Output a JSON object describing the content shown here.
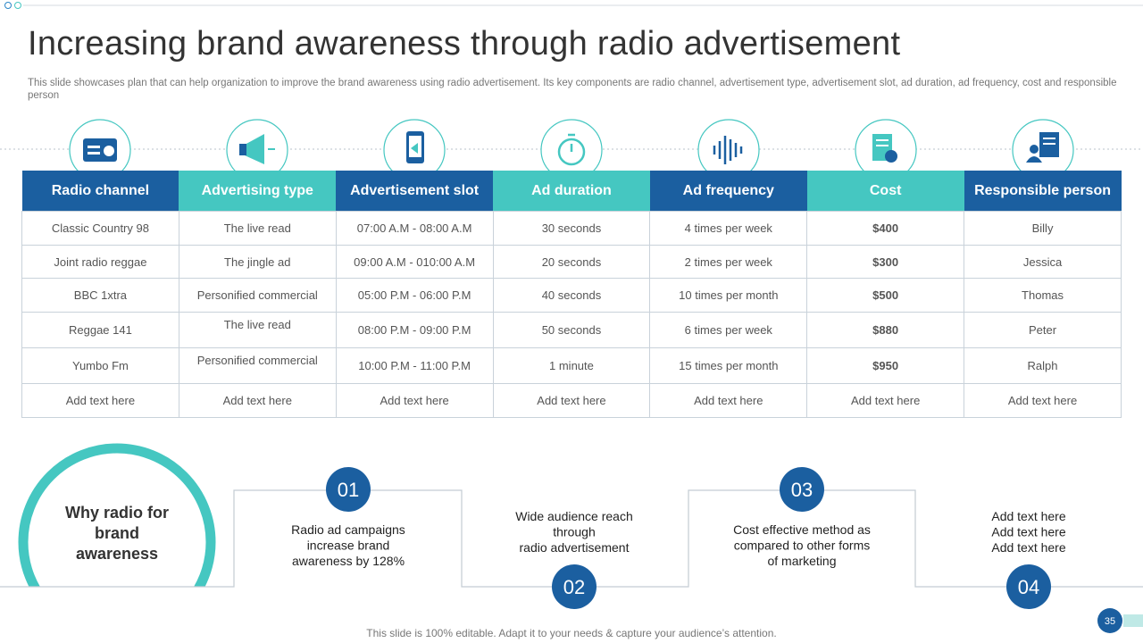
{
  "header": {
    "title": "Increasing brand awareness through radio advertisement",
    "subtitle": "This slide showcases plan that can help organization to improve the brand awareness using radio advertisement. Its key components are radio channel, advertisement type, advertisement slot, ad duration, ad frequency,  cost and responsible person"
  },
  "table": {
    "headers": [
      "Radio channel",
      "Advertising type",
      "Advertisement slot",
      "Ad duration",
      "Ad frequency",
      "Cost",
      "Responsible person"
    ],
    "rows": [
      [
        "Classic Country 98",
        "The live read",
        "07:00 A.M - 08:00 A.M",
        "30 seconds",
        "4 times per week",
        "$400",
        "Billy"
      ],
      [
        "Joint radio reggae",
        "The jingle ad",
        "09:00 A.M - 010:00 A.M",
        "20 seconds",
        "2 times per week",
        "$300",
        "Jessica"
      ],
      [
        "BBC 1xtra",
        "Personified commercial",
        "05:00 P.M - 06:00 P.M",
        "40 seconds",
        "10 times per month",
        "$500",
        "Thomas"
      ],
      [
        "Reggae 141",
        "The live read",
        "08:00 P.M - 09:00 P.M",
        "50 seconds",
        "6 times per week",
        "$880",
        "Peter"
      ],
      [
        "Yumbo Fm",
        "Personified commercial",
        "10:00 P.M - 11:00 P.M",
        "1 minute",
        "15 times per month",
        "$950",
        "Ralph"
      ],
      [
        "Add text here",
        "Add text here",
        "Add text here",
        "Add text here",
        "Add text here",
        "Add text here",
        "Add text here"
      ]
    ]
  },
  "why": {
    "lines": [
      "Why radio for",
      "brand",
      "awareness"
    ]
  },
  "steps": [
    {
      "number": "01",
      "lines": [
        "Radio ad campaigns",
        "increase brand",
        "awareness by 128%"
      ]
    },
    {
      "number": "02",
      "lines": [
        "Wide audience reach",
        "through",
        "radio advertisement"
      ]
    },
    {
      "number": "03",
      "lines": [
        "Cost effective method as",
        "compared to other forms",
        "of marketing"
      ]
    },
    {
      "number": "04",
      "lines": [
        "Add text here",
        "Add text here",
        "Add text here"
      ]
    }
  ],
  "footer": {
    "note": "This slide is 100% editable. Adapt it to your needs & capture your audience’s attention.",
    "page_number": "35"
  }
}
